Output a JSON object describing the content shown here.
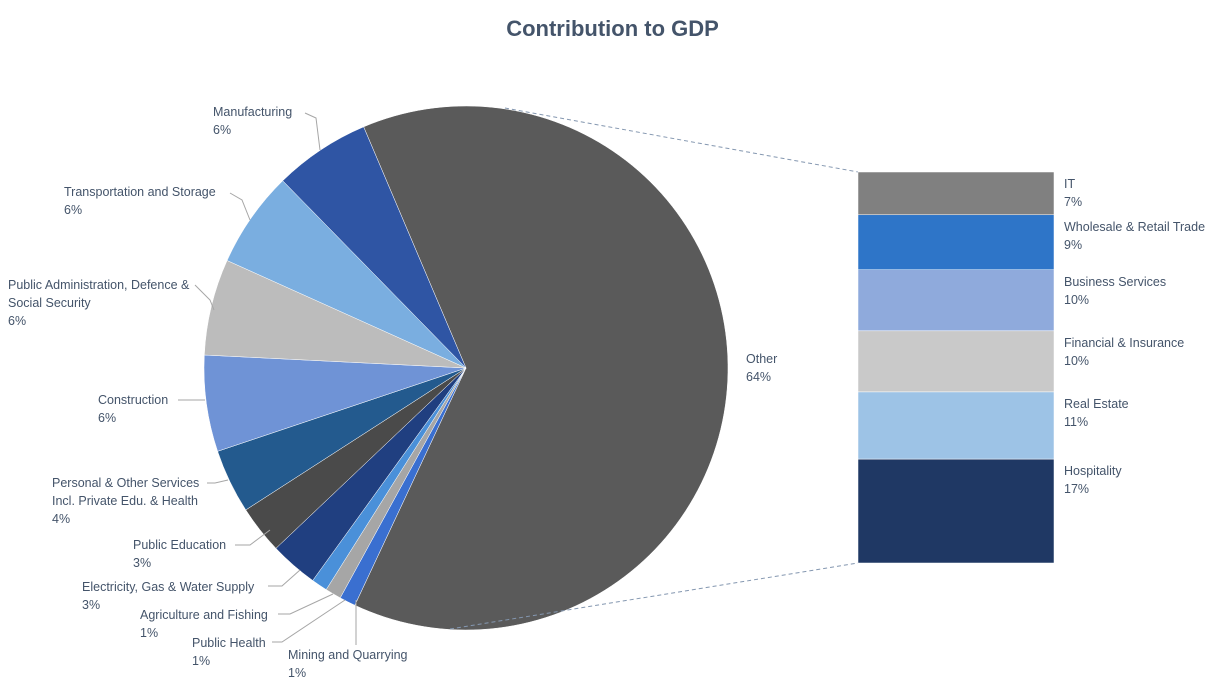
{
  "chart_data": {
    "type": "pie",
    "title": "Contribution to GDP",
    "categories": [
      "Other",
      "Mining and Quarrying",
      "Public Health",
      "Agriculture and Fishing",
      "Electricity, Gas & Water Supply",
      "Public Education",
      "Personal & Other Services Incl. Private Edu. & Health",
      "Construction",
      "Public Administration, Defence & Social Security",
      "Transportation and Storage",
      "Manufacturing"
    ],
    "values": [
      64,
      1,
      1,
      1,
      3,
      3,
      4,
      6,
      6,
      6,
      6
    ],
    "value_labels": [
      "64%",
      "1%",
      "1%",
      "1%",
      "3%",
      "3%",
      "4%",
      "6%",
      "6%",
      "6%",
      "6%"
    ],
    "colors": [
      "#5a5a5a",
      "#3a6fd0",
      "#a6a6a6",
      "#4a90d9",
      "#203f80",
      "#4a4a4a",
      "#235a8e",
      "#6f93d6",
      "#bcbcbc",
      "#7aaee0",
      "#2f55a4"
    ],
    "breakdown": {
      "categories": [
        "IT",
        "Wholesale & Retail Trade",
        "Business Services",
        "Financial & Insurance",
        "Real Estate",
        "Hospitality"
      ],
      "values": [
        7,
        9,
        10,
        10,
        11,
        17
      ],
      "value_labels": [
        "7%",
        "9%",
        "10%",
        "10%",
        "11%",
        "17%"
      ],
      "colors": [
        "#808080",
        "#2e75c8",
        "#8faadc",
        "#c9c9c9",
        "#9dc3e6",
        "#1f3864"
      ]
    }
  }
}
